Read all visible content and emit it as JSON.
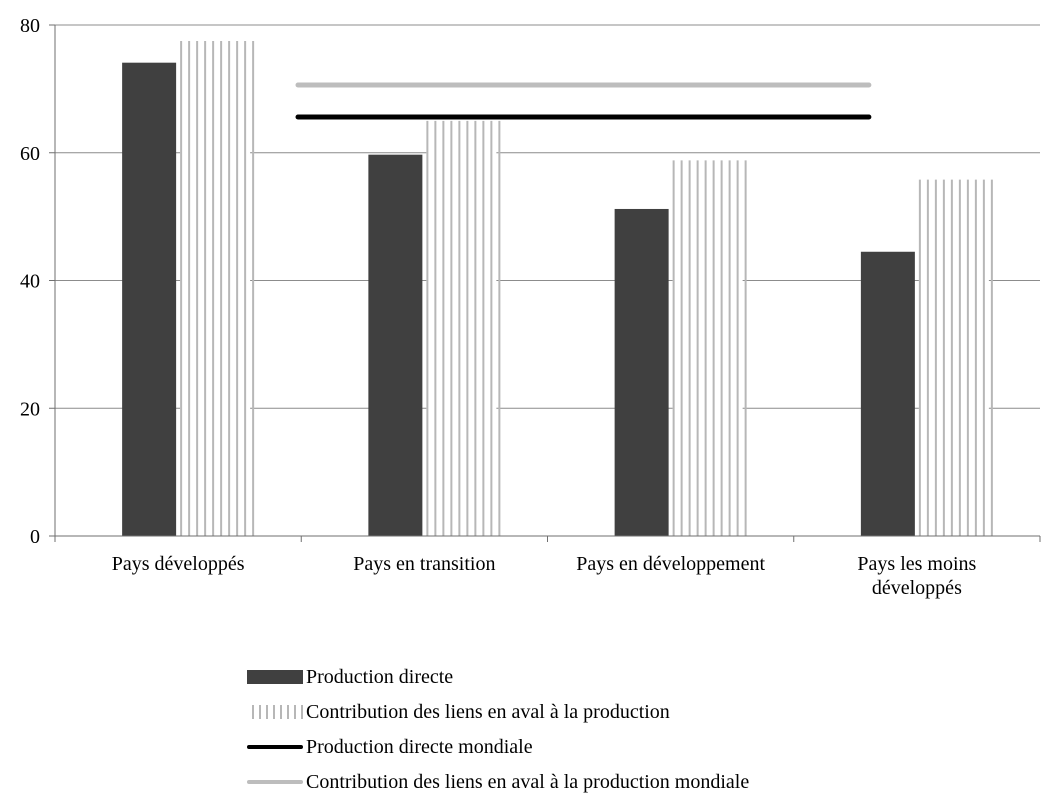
{
  "chart_data": {
    "type": "bar",
    "categories": [
      "Pays développés",
      "Pays en transition",
      "Pays en développement",
      "Pays les moins développés"
    ],
    "category_lines": [
      [
        "Pays développés"
      ],
      [
        "Pays en transition"
      ],
      [
        "Pays en développement"
      ],
      [
        "Pays les moins",
        "développés"
      ]
    ],
    "series": [
      {
        "name": "Production directe",
        "values": [
          74.1,
          59.7,
          51.2,
          44.5
        ],
        "color": "#404040",
        "style": "solid"
      },
      {
        "name": "Contribution des liens en aval à la production",
        "values": [
          77.5,
          65.0,
          58.8,
          55.8
        ],
        "color": "#b7b7b7",
        "style": "vertical-hatch"
      }
    ],
    "reference_lines": [
      {
        "name": "Production directe mondiale",
        "value": 65.6,
        "color": "#000000"
      },
      {
        "name": "Contribution des liens en aval à la production mondiale",
        "value": 70.6,
        "color": "#bdbdbd"
      }
    ],
    "ylim": [
      0,
      80
    ],
    "yticks": [
      "0",
      "20",
      "40",
      "60",
      "80"
    ],
    "grid": true,
    "legend_position": "bottom",
    "title": "",
    "xlabel": "",
    "ylabel": ""
  }
}
